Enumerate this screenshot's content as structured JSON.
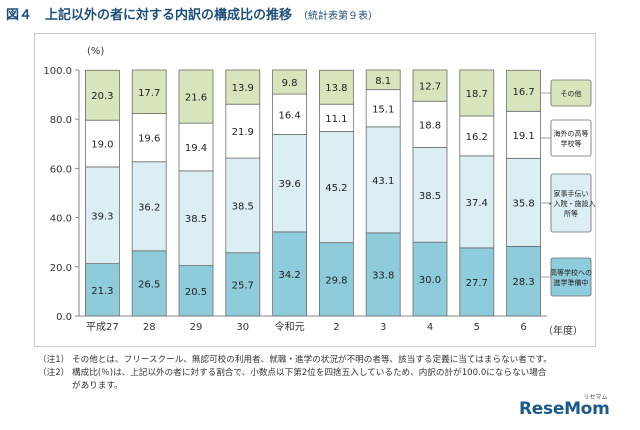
{
  "figure": {
    "title": "図４　上記以外の者に対する内訳の構成比の推移",
    "subtitle": "（統計表第９表）"
  },
  "colors": {
    "preparation": "#8ecbdb",
    "employment": "#daeef3",
    "overseas": "#ffffff",
    "other": "#d7e4bc",
    "outline": "#6d6d6d",
    "title": "#1f4e79"
  },
  "chart_data": {
    "type": "bar",
    "stacked": true,
    "ylabel": "(%)",
    "xlabel": "（年度）",
    "ylim": [
      0,
      100
    ],
    "yticks": [
      "0.0",
      "20.0",
      "40.0",
      "60.0",
      "80.0",
      "100.0"
    ],
    "categories": [
      "平成27",
      "28",
      "29",
      "30",
      "令和元",
      "2",
      "3",
      "4",
      "5",
      "6"
    ],
    "series": [
      {
        "key": "preparation",
        "name": "高等学校への進学準備中",
        "values": [
          21.3,
          26.5,
          20.5,
          25.7,
          34.2,
          29.8,
          33.8,
          30.0,
          27.7,
          28.3
        ]
      },
      {
        "key": "employment",
        "name": "家事手伝い・入院・施設入所等",
        "values": [
          39.3,
          36.2,
          38.5,
          38.5,
          39.6,
          45.2,
          43.1,
          38.5,
          37.4,
          35.8
        ]
      },
      {
        "key": "overseas",
        "name": "海外の高等学校等",
        "values": [
          19.0,
          19.6,
          19.4,
          21.9,
          16.4,
          11.1,
          15.1,
          18.8,
          16.2,
          19.1
        ]
      },
      {
        "key": "other",
        "name": "その他",
        "values": [
          20.3,
          17.7,
          21.6,
          13.9,
          9.8,
          13.8,
          8.1,
          12.7,
          18.7,
          16.7
        ]
      }
    ],
    "value_labels": [
      [
        "21.3",
        "26.5",
        "20.5",
        "25.7",
        "34.2",
        "29.8",
        "33.8",
        "30.0",
        "27.7",
        "28.3"
      ],
      [
        "39.3",
        "36.2",
        "38.5",
        "38.5",
        "39.6",
        "45.2",
        "43.1",
        "38.5",
        "37.4",
        "35.8"
      ],
      [
        "19.0",
        "19.6",
        "19.4",
        "21.9",
        "16.4",
        "11.1",
        "15.1",
        "18.8",
        "16.2",
        "19.1"
      ],
      [
        "20.3",
        "17.7",
        "21.6",
        "13.9",
        "9.8",
        "13.8",
        "8.1",
        "12.7",
        "18.7",
        "16.7"
      ]
    ],
    "legend": [
      {
        "key": "other",
        "lines": [
          "その他"
        ]
      },
      {
        "key": "overseas",
        "lines": [
          "海外の高等",
          "学校等"
        ]
      },
      {
        "key": "employment",
        "lines": [
          "家事手伝い",
          "・入院・施設入",
          "所等"
        ]
      },
      {
        "key": "preparation",
        "lines": [
          "高等学校への",
          "進学準備中"
        ]
      }
    ]
  },
  "notes": [
    {
      "marker": "（注1）",
      "text": "その他とは、フリースクール、無認可校の利用者、就職・進学の状況が不明の者等、該当する定義に当てはまらない者です。"
    },
    {
      "marker": "（注2）",
      "text": "構成比(％)は、上記以外の者に対する割合で、小数点以下第2位を四捨五入しているため、内訳の計が100.0にならない場合"
    },
    {
      "marker": "",
      "text": "があります。"
    }
  ],
  "brand": {
    "name": "ReseMom",
    "kana": "リセマム"
  }
}
